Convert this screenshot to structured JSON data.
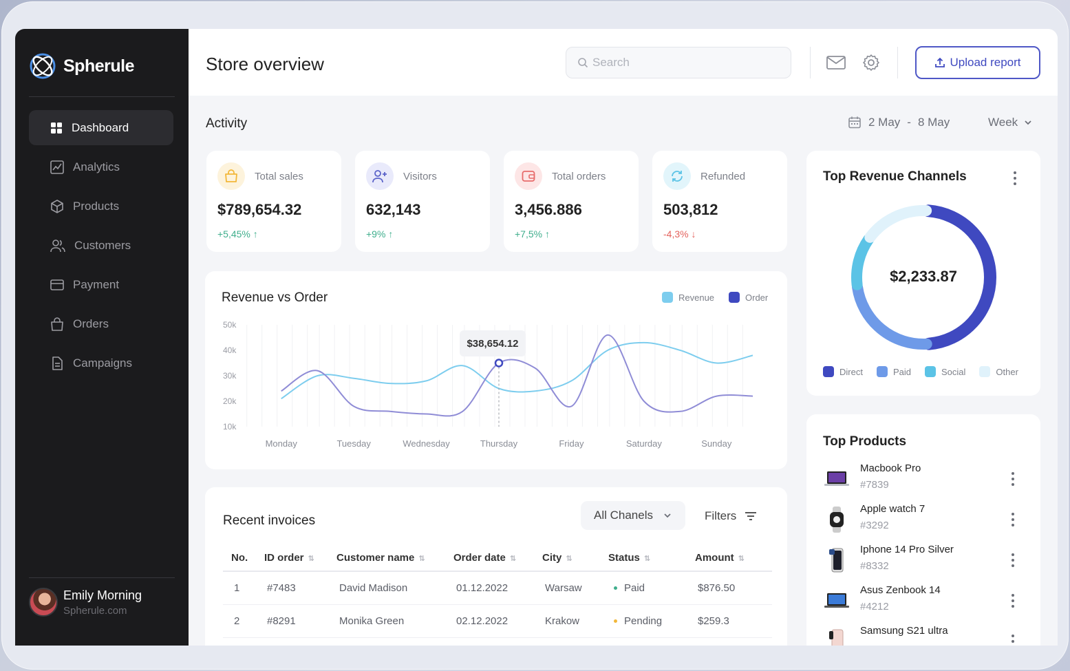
{
  "brand": {
    "name": "Spherule"
  },
  "sidebar": {
    "items": [
      {
        "label": "Dashboard",
        "icon": "grid-icon",
        "active": true
      },
      {
        "label": "Analytics",
        "icon": "chart-icon"
      },
      {
        "label": "Products",
        "icon": "cube-icon"
      },
      {
        "label": "Customers",
        "icon": "users-icon"
      },
      {
        "label": "Payment",
        "icon": "card-icon"
      },
      {
        "label": "Orders",
        "icon": "bag-icon"
      },
      {
        "label": "Campaigns",
        "icon": "file-icon"
      }
    ]
  },
  "user": {
    "name": "Emily Morning",
    "site": "Spherule.com"
  },
  "header": {
    "title": "Store overview",
    "search_placeholder": "Search",
    "upload_label": "Upload report"
  },
  "activity": {
    "title": "Activity",
    "date_from": "2 May",
    "date_sep": "-",
    "date_to": "8 May",
    "period": "Week"
  },
  "stats": [
    {
      "label": "Total sales",
      "value": "$789,654.32",
      "change": "+5,45%",
      "trend": "up",
      "color": "#f2b739",
      "bg": "#fdf3dc"
    },
    {
      "label": "Visitors",
      "value": "632,143",
      "change": "+9%",
      "trend": "up",
      "color": "#5b63c9",
      "bg": "#e9eafb"
    },
    {
      "label": "Total orders",
      "value": "3,456.886",
      "change": "+7,5%",
      "trend": "up",
      "color": "#e76b6b",
      "bg": "#fde6e6"
    },
    {
      "label": "Refunded",
      "value": "503,812",
      "change": "-4,3%",
      "trend": "down",
      "color": "#5bc3e6",
      "bg": "#e2f5fb"
    }
  ],
  "chart_data": {
    "type": "line",
    "title": "Revenue vs Order",
    "categories": [
      "Monday",
      "Tuesday",
      "Wednesday",
      "Thursday",
      "Friday",
      "Saturday",
      "Sunday"
    ],
    "x": [
      0,
      0.5,
      1,
      1.5,
      2,
      2.5,
      3,
      3.5,
      4,
      4.5,
      5,
      5.5,
      6,
      6.5
    ],
    "yticks": [
      "50k",
      "40k",
      "30k",
      "20k",
      "10k"
    ],
    "ylim": [
      10000,
      50000
    ],
    "series": [
      {
        "name": "Revenue",
        "color": "#7dcdee",
        "values": [
          21000,
          30000,
          29000,
          27000,
          28000,
          34000,
          25000,
          24000,
          28000,
          40000,
          43000,
          40000,
          35000,
          38000
        ]
      },
      {
        "name": "Order",
        "color": "#8f8cd6",
        "values": [
          24000,
          32000,
          18000,
          16000,
          15000,
          16000,
          35000,
          33000,
          18000,
          46000,
          20000,
          16000,
          22000,
          22000
        ]
      }
    ],
    "tooltip": {
      "label": "$38,654.12",
      "x": 3
    }
  },
  "invoices": {
    "title": "Recent invoices",
    "channel_select": "All Chanels",
    "filters_label": "Filters",
    "columns": [
      "No.",
      "ID order",
      "Customer name",
      "Order date",
      "City",
      "Status",
      "Amount"
    ],
    "rows": [
      {
        "no": "1",
        "id": "#7483",
        "customer": "David Madison",
        "date": "01.12.2022",
        "city": "Warsaw",
        "status": "Paid",
        "status_color": "#3fae8c",
        "amount": "$876.50"
      },
      {
        "no": "2",
        "id": "#8291",
        "customer": "Monika Green",
        "date": "02.12.2022",
        "city": "Krakow",
        "status": "Pending",
        "status_color": "#f2b739",
        "amount": "$259.3"
      }
    ]
  },
  "revenue_channels": {
    "title": "Top Revenue Channels",
    "total": "$2,233.87",
    "segments": [
      {
        "name": "Direct",
        "value": 48,
        "color": "#3f49c0"
      },
      {
        "name": "Paid",
        "value": 24,
        "color": "#6e9ae8"
      },
      {
        "name": "Social",
        "value": 12,
        "color": "#5bc3e6"
      },
      {
        "name": "Other",
        "value": 16,
        "color": "#e0f2fb"
      }
    ]
  },
  "top_products": {
    "title": "Top Products",
    "items": [
      {
        "name": "Macbook Pro",
        "id": "#7839",
        "icon": "laptop-icon"
      },
      {
        "name": "Apple watch 7",
        "id": "#3292",
        "icon": "watch-icon"
      },
      {
        "name": "Iphone 14 Pro Silver",
        "id": "#8332",
        "icon": "phone-icon"
      },
      {
        "name": "Asus Zenbook 14",
        "id": "#4212",
        "icon": "laptop-icon"
      },
      {
        "name": "Samsung S21 ultra",
        "id": "",
        "icon": "phone-icon"
      }
    ]
  }
}
